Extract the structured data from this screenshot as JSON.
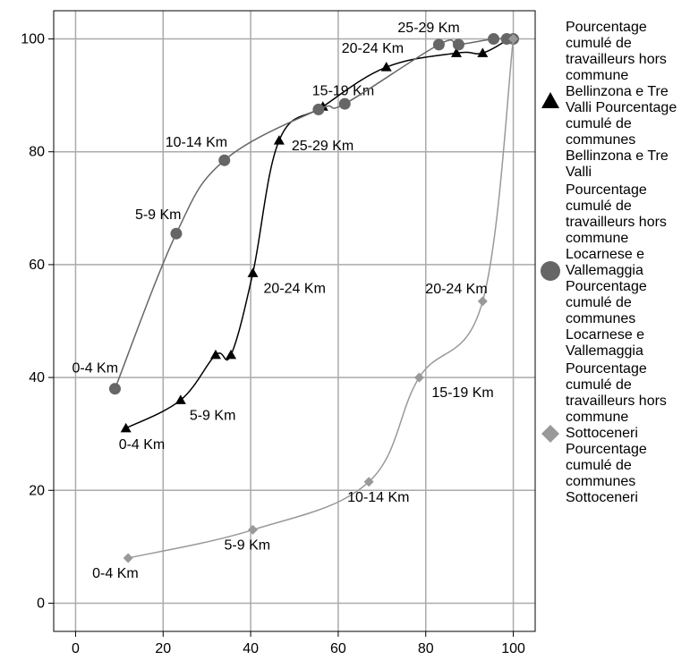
{
  "chart_data": {
    "type": "scatter",
    "xlim": [
      -5,
      105
    ],
    "ylim": [
      -5,
      105
    ],
    "xticks": [
      "0",
      "20",
      "40",
      "60",
      "80",
      "100"
    ],
    "yticks": [
      "0",
      "20",
      "40",
      "60",
      "80",
      "100"
    ],
    "grid": true,
    "legend_position": "right",
    "series": [
      {
        "name": "Pourcentage cumulé de travailleurs hors commune Bellinzona e Tre Valli Pourcentage cumulé de communes Bellinzona e Tre Valli",
        "marker": "triangle",
        "color": "#000000",
        "x": [
          11.5,
          24,
          32,
          35.5,
          40.5,
          46.5,
          56.5,
          71,
          87,
          93,
          99
        ],
        "y": [
          31,
          36,
          44,
          44,
          58.5,
          82,
          88,
          95,
          97.5,
          97.5,
          100
        ],
        "labels": [
          "0-4 Km",
          "5-9 Km",
          "",
          "",
          "20-24 Km",
          "25-29 Km",
          "15-19 Km",
          "20-24 Km",
          "",
          "",
          ""
        ]
      },
      {
        "name": "Pourcentage cumulé de travailleurs hors commune Locarnese e Vallemaggia Pourcentage cumulé de communes Locarnese e Vallemaggia",
        "marker": "circle",
        "color": "#666666",
        "x": [
          9,
          23,
          34,
          55.5,
          61.5,
          83,
          87.5,
          95.5,
          98.5,
          100
        ],
        "y": [
          38,
          65.5,
          78.5,
          87.5,
          88.5,
          99,
          99,
          100,
          100,
          100
        ],
        "labels": [
          "0-4 Km",
          "5-9 Km",
          "10-14 Km",
          "",
          "",
          "25-29 Km",
          "",
          "",
          "",
          ""
        ]
      },
      {
        "name": "Pourcentage cumulé de travailleurs hors commune Sottoceneri Pourcentage cumulé de communes Sottoceneri",
        "marker": "diamond",
        "color": "#999999",
        "x": [
          12,
          40.5,
          67,
          78.5,
          93,
          100
        ],
        "y": [
          8,
          13,
          21.5,
          40,
          53.5,
          100
        ],
        "labels": [
          "0-4 Km",
          "5-9 Km",
          "10-14 Km",
          "15-19 Km",
          "20-24 Km",
          ""
        ]
      }
    ]
  }
}
